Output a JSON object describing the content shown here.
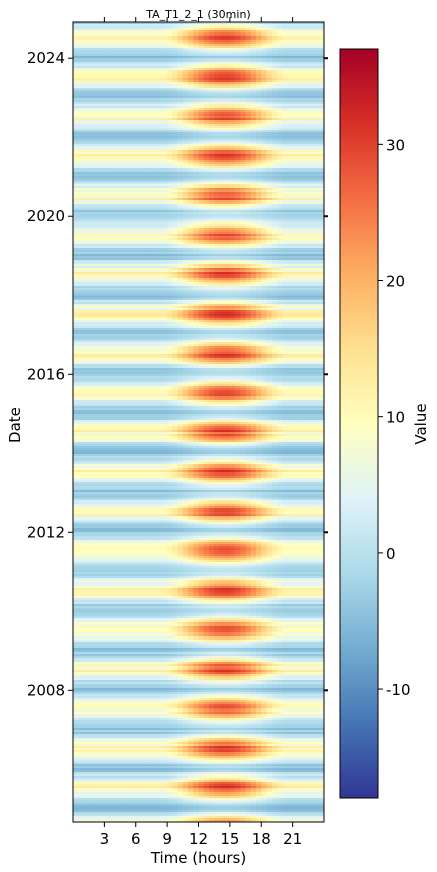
{
  "chart_data": {
    "type": "heatmap",
    "title": "TA_T1_2_1 (30min)",
    "xlabel": "Time (hours)",
    "ylabel": "Date",
    "x_ticks": [
      3,
      6,
      9,
      12,
      15,
      18,
      21
    ],
    "x_range": [
      0,
      24
    ],
    "y_ticks": [
      "2008",
      "2012",
      "2016",
      "2020",
      "2024"
    ],
    "y_range": [
      "2004-09",
      "2024-12"
    ],
    "colorbar": {
      "label": "Value",
      "range": [
        -18,
        37
      ],
      "ticks": [
        -10,
        0,
        10,
        20,
        30
      ],
      "colormap": "RdYlBu_r"
    },
    "colormap_stops": [
      "#313695",
      "#4575b4",
      "#74add1",
      "#abd9e9",
      "#e0f3f8",
      "#ffffbf",
      "#fee090",
      "#fdae61",
      "#f46d43",
      "#d73027",
      "#a50026"
    ],
    "yearly_pattern": {
      "summer_midday_peak": 33,
      "winter_night_low": -4,
      "peak_hour": 14.5
    }
  }
}
